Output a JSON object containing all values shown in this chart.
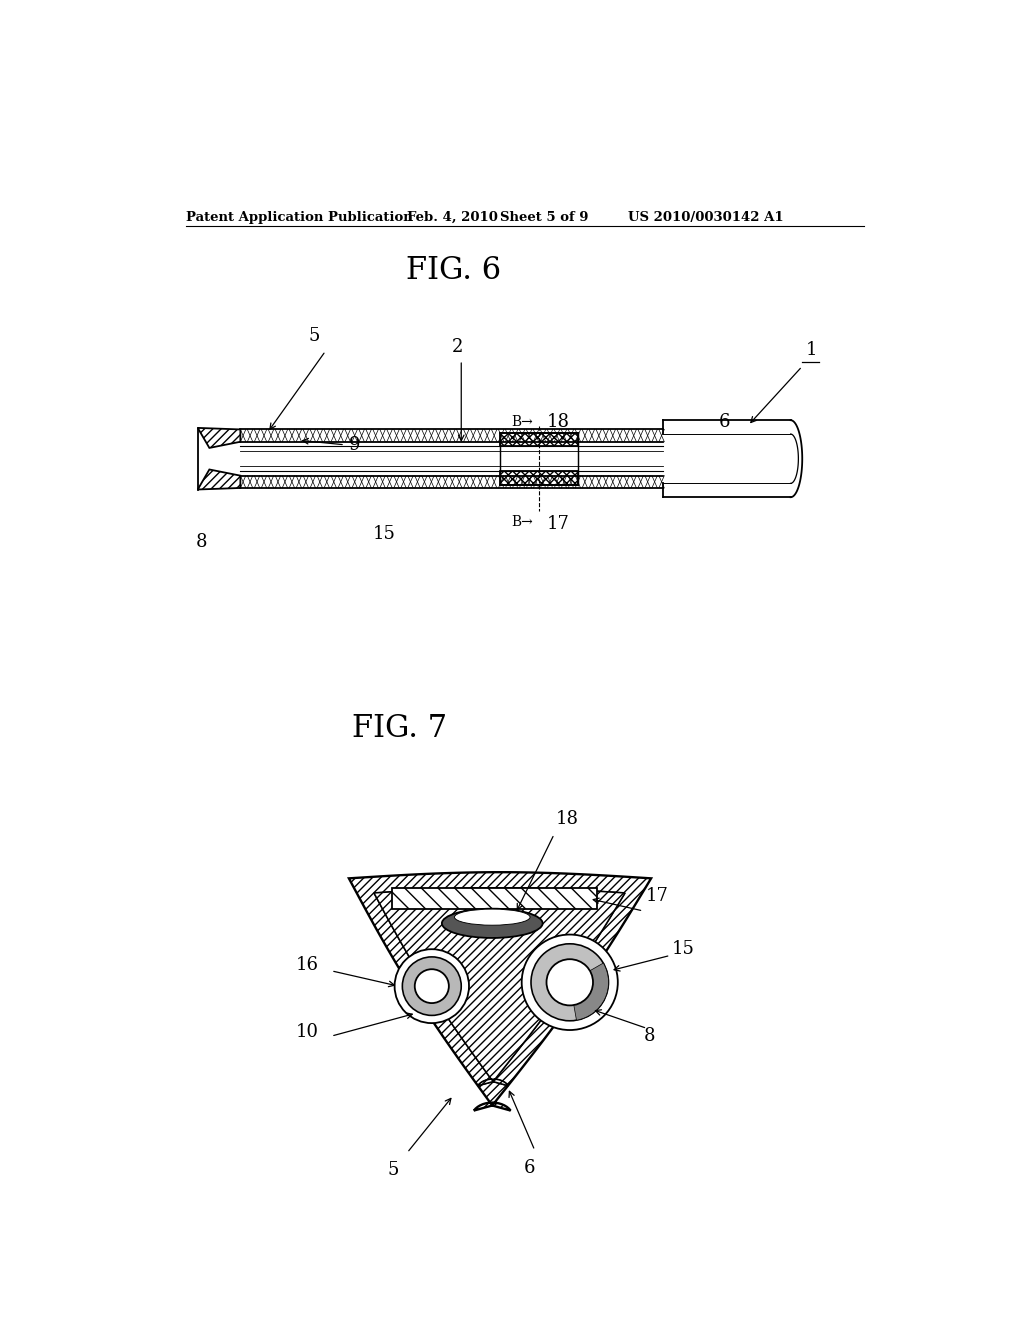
{
  "bg_color": "#ffffff",
  "header_text": "Patent Application Publication",
  "header_date": "Feb. 4, 2010",
  "header_sheet": "Sheet 5 of 9",
  "header_patent": "US 2010/0030142 A1",
  "fig6_title": "FIG. 6",
  "fig7_title": "FIG. 7",
  "line_color": "#000000"
}
